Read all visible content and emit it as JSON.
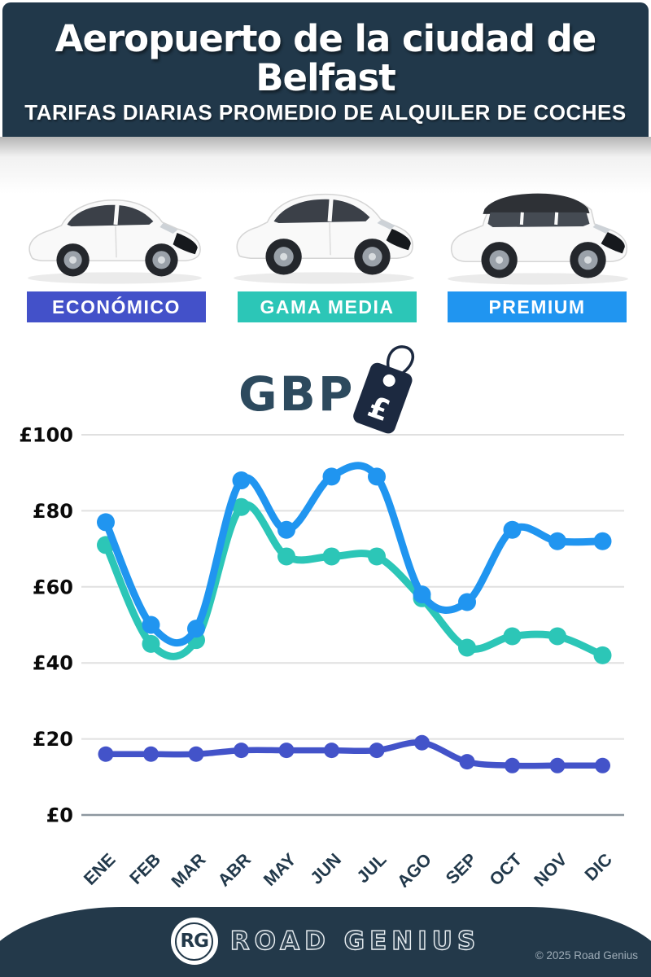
{
  "header": {
    "title_line1": "Aeropuerto de la ciudad de",
    "title_line2": "Belfast",
    "subtitle": "TARIFAS DIARIAS PROMEDIO DE ALQUILER DE COCHES"
  },
  "categories": [
    {
      "label": "ECONÓMICO",
      "color": "#4351c9",
      "car": "compact-hatchback"
    },
    {
      "label": "GAMA MEDIA",
      "color": "#2cc6b7",
      "car": "midsize-suv"
    },
    {
      "label": "PREMIUM",
      "color": "#2095f0",
      "car": "luxury-suv"
    }
  ],
  "currency": {
    "code": "GBP",
    "symbol": "£",
    "tag_color": "#1c2940"
  },
  "chart_data": {
    "type": "line",
    "title": "Tarifas diarias promedio de alquiler de coches (GBP)",
    "categories": [
      "ENE",
      "FEB",
      "MAR",
      "ABR",
      "MAY",
      "JUN",
      "JUL",
      "AGO",
      "SEP",
      "OCT",
      "NOV",
      "DIC"
    ],
    "series": [
      {
        "name": "PREMIUM",
        "color": "#2095f0",
        "values": [
          77,
          50,
          49,
          88,
          75,
          89,
          89,
          58,
          56,
          75,
          72,
          72
        ]
      },
      {
        "name": "GAMA MEDIA",
        "color": "#2cc6b7",
        "values": [
          71,
          45,
          46,
          81,
          68,
          68,
          68,
          57,
          44,
          47,
          47,
          42
        ]
      },
      {
        "name": "ECONÓMICO",
        "color": "#4353c9",
        "values": [
          16,
          16,
          16,
          17,
          17,
          17,
          17,
          19,
          14,
          13,
          13,
          13
        ]
      }
    ],
    "yticks": [
      0,
      20,
      40,
      60,
      80,
      100
    ],
    "ytick_prefix": "£",
    "ylim": [
      0,
      100
    ],
    "grid": true,
    "legend_position": "badges-above-chart"
  },
  "footer": {
    "logo_initials": "RG",
    "brand": "ROAD GENIUS",
    "copyright": "© 2025 Road Genius"
  }
}
